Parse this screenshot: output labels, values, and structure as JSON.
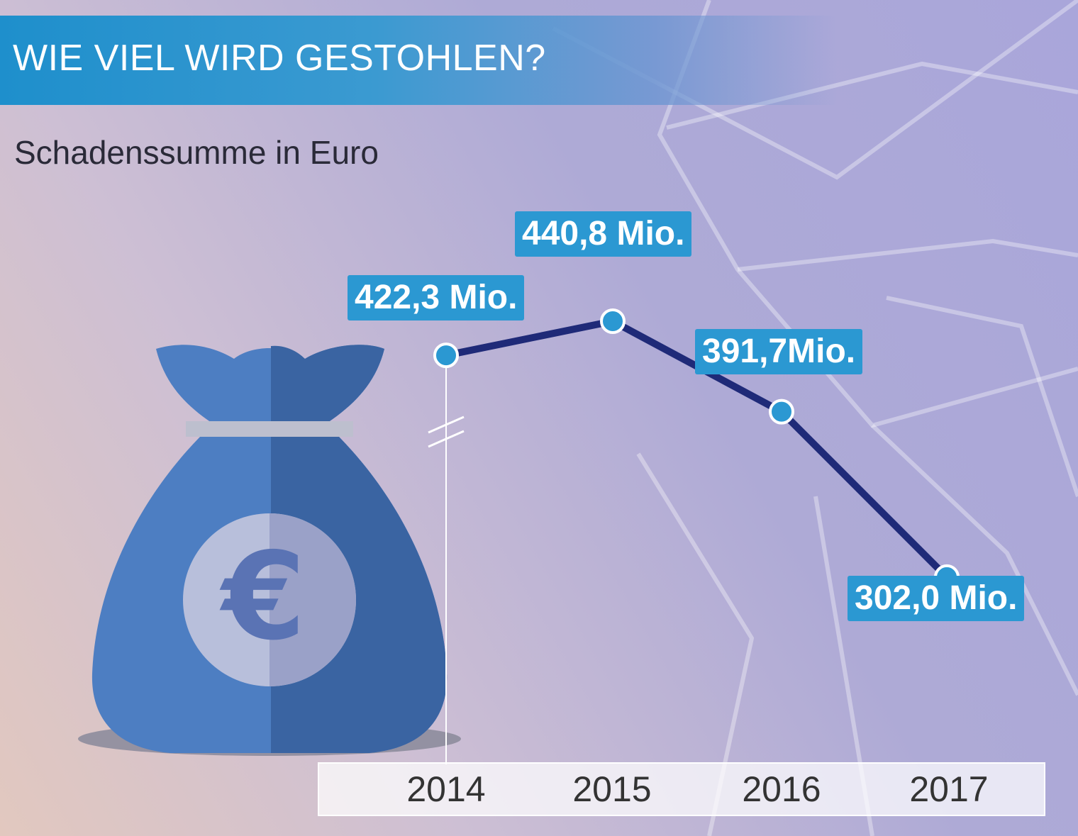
{
  "title": "WIE VIEL WIRD GESTOHLEN?",
  "subtitle": "Schadenssumme in Euro",
  "colors": {
    "title_bar": "#1e8fcc",
    "label_bg": "#2b98d2",
    "line": "#1f2a78",
    "bag_light": "#4d7ec2",
    "bag_dark": "#3a64a2"
  },
  "icon": "money-bag-euro-icon",
  "chart_data": {
    "type": "line",
    "title": "WIE VIEL WIRD GESTOHLEN?",
    "subtitle": "Schadenssumme in Euro",
    "categories": [
      "2014",
      "2015",
      "2016",
      "2017"
    ],
    "series": [
      {
        "values": [
          422.3,
          440.8,
          391.7,
          302.0
        ]
      }
    ],
    "data_labels": [
      "422,3 Mio.",
      "440,8 Mio.",
      "391,7Mio.",
      "302,0 Mio."
    ],
    "axis_break": true,
    "grid": false,
    "legend": "none"
  }
}
